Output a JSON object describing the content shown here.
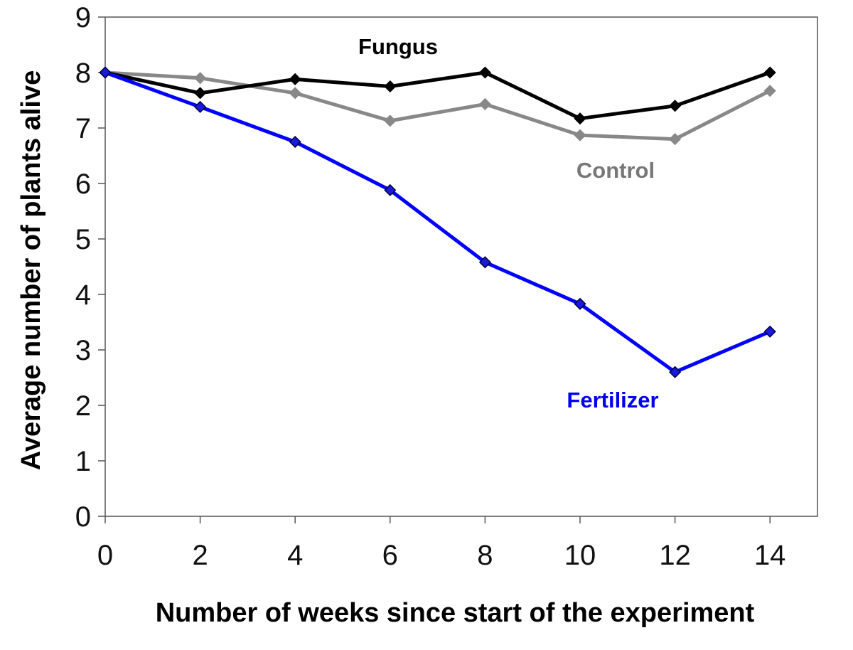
{
  "chart_data": {
    "type": "line",
    "title": "",
    "xlabel": "Number of weeks since start of the experiment",
    "ylabel": "Average number of plants alive",
    "x": [
      0,
      2,
      4,
      6,
      8,
      10,
      12,
      14
    ],
    "xticks": [
      "0",
      "2",
      "4",
      "6",
      "8",
      "10",
      "12",
      "14"
    ],
    "yticks": [
      "0",
      "1",
      "2",
      "3",
      "4",
      "5",
      "6",
      "7",
      "8",
      "9"
    ],
    "xlim": [
      0,
      15
    ],
    "ylim": [
      0,
      9
    ],
    "grid": false,
    "legend": "inline labels",
    "series": [
      {
        "name": "Control",
        "color": "#888888",
        "values": [
          8.0,
          7.9,
          7.63,
          7.13,
          7.43,
          6.87,
          6.8,
          7.67
        ]
      },
      {
        "name": "Fungus",
        "color": "#000000",
        "values": [
          8.0,
          7.63,
          7.88,
          7.75,
          8.0,
          7.17,
          7.4,
          8.0
        ]
      },
      {
        "name": "Fertilizer",
        "color": "#0000ff",
        "values": [
          8.0,
          7.38,
          6.75,
          5.88,
          4.58,
          3.83,
          2.6,
          3.33
        ]
      }
    ]
  }
}
